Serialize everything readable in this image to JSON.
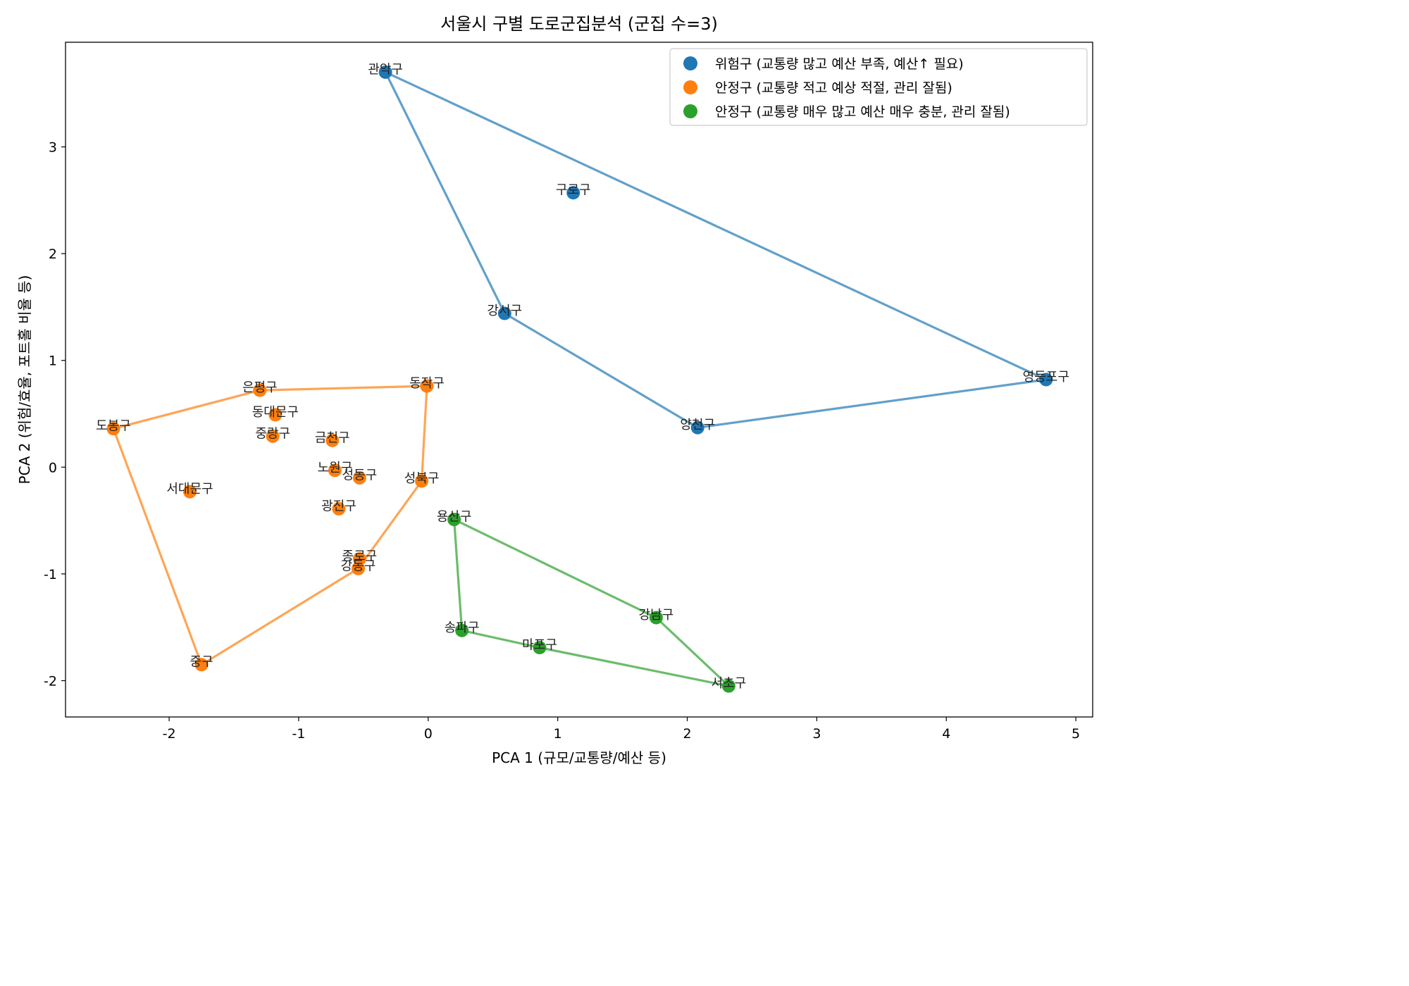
{
  "chart_data": {
    "type": "scatter",
    "title": "서울시 구별 도로군집분석 (군집 수=3)",
    "xlabel": "PCA 1 (규모/교통량/예산 등)",
    "ylabel": "PCA 2 (위험/효율, 포트홀 비율 등)",
    "xlim": [
      -2.8,
      5.13
    ],
    "ylim": [
      -2.34,
      3.98
    ],
    "xticks": [
      -2,
      -1,
      0,
      1,
      2,
      3,
      4,
      5
    ],
    "yticks": [
      -2,
      -1,
      0,
      1,
      2,
      3
    ],
    "grid": false,
    "legend_position": "top-right",
    "series": [
      {
        "name": "위험구 (교통량 많고 예산 부족, 예산↑ 필요)",
        "color": "#1f77b4",
        "points": [
          {
            "label": "관악구",
            "x": -0.33,
            "y": 3.7
          },
          {
            "label": "구로구",
            "x": 1.12,
            "y": 2.57
          },
          {
            "label": "강서구",
            "x": 0.59,
            "y": 1.44
          },
          {
            "label": "양천구",
            "x": 2.08,
            "y": 0.37
          },
          {
            "label": "영등포구",
            "x": 4.77,
            "y": 0.82
          }
        ],
        "hull": [
          "관악구",
          "영등포구",
          "양천구",
          "강서구",
          "관악구"
        ]
      },
      {
        "name": "안정구 (교통량 적고 예상 적절, 관리 잘됨)",
        "color": "#ff7f0e",
        "points": [
          {
            "label": "은평구",
            "x": -1.3,
            "y": 0.72
          },
          {
            "label": "동작구",
            "x": -0.01,
            "y": 0.76
          },
          {
            "label": "동대문구",
            "x": -1.18,
            "y": 0.49
          },
          {
            "label": "도봉구",
            "x": -2.43,
            "y": 0.36
          },
          {
            "label": "중랑구",
            "x": -1.2,
            "y": 0.29
          },
          {
            "label": "금천구",
            "x": -0.74,
            "y": 0.25
          },
          {
            "label": "노원구",
            "x": -0.72,
            "y": -0.03
          },
          {
            "label": "성동구",
            "x": -0.53,
            "y": -0.1
          },
          {
            "label": "성북구",
            "x": -0.05,
            "y": -0.13
          },
          {
            "label": "서대문구",
            "x": -1.84,
            "y": -0.23
          },
          {
            "label": "광진구",
            "x": -0.69,
            "y": -0.39
          },
          {
            "label": "종로구",
            "x": -0.53,
            "y": -0.86
          },
          {
            "label": "강동구",
            "x": -0.54,
            "y": -0.95
          },
          {
            "label": "중구",
            "x": -1.75,
            "y": -1.85
          }
        ],
        "hull": [
          "도봉구",
          "은평구",
          "동작구",
          "성북구",
          "강동구",
          "중구",
          "도봉구"
        ]
      },
      {
        "name": "안정구 (교통량 매우 많고 예산 매우 충분, 관리 잘됨)",
        "color": "#2ca02c",
        "points": [
          {
            "label": "용산구",
            "x": 0.2,
            "y": -0.49
          },
          {
            "label": "강남구",
            "x": 1.76,
            "y": -1.41
          },
          {
            "label": "송파구",
            "x": 0.26,
            "y": -1.53
          },
          {
            "label": "마포구",
            "x": 0.86,
            "y": -1.69
          },
          {
            "label": "서초구",
            "x": 2.32,
            "y": -2.05
          }
        ],
        "hull": [
          "용산구",
          "강남구",
          "서초구",
          "마포구",
          "송파구",
          "용산구"
        ]
      }
    ]
  }
}
